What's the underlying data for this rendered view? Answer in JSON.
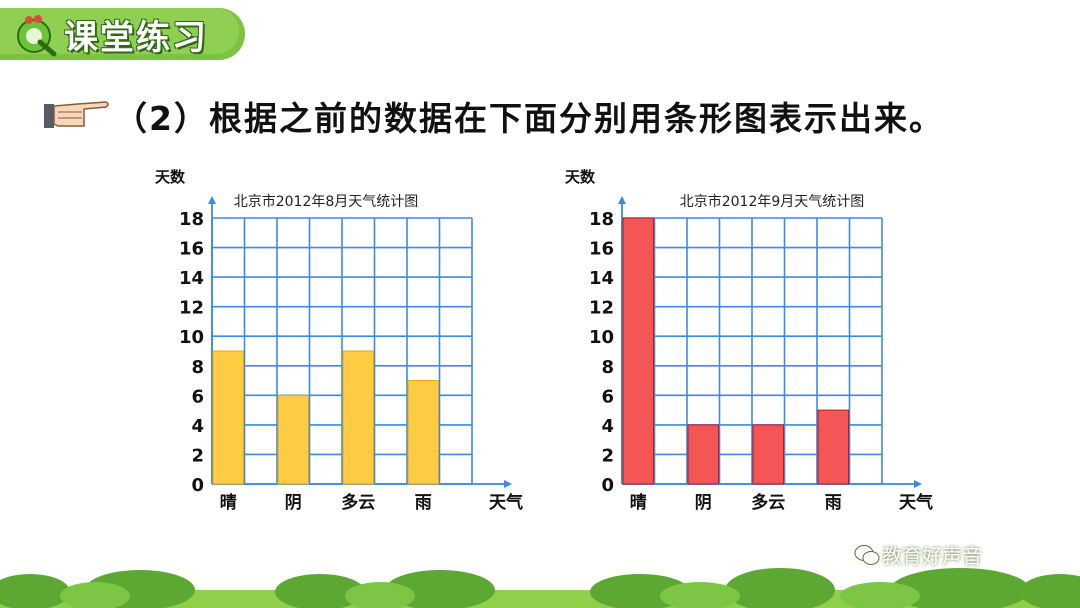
{
  "header": {
    "title": "课堂练习"
  },
  "instruction": {
    "text": "（2）根据之前的数据在下面分别用条形图表示出来。"
  },
  "charts": [
    {
      "ylabel": "天数",
      "xlabel": "天气",
      "title": "北京市2012年8月天气统计图",
      "color": "#ffcc44",
      "border": "#e8a800"
    },
    {
      "ylabel": "天数",
      "xlabel": "天气",
      "title": "北京市2012年9月天气统计图",
      "color": "#f45555",
      "border": "#c01818"
    }
  ],
  "chart_data": [
    {
      "type": "bar",
      "title": "北京市2012年8月天气统计图",
      "categories": [
        "晴",
        "阴",
        "多云",
        "雨"
      ],
      "values": [
        9,
        6,
        9,
        7
      ],
      "xlabel": "天气",
      "ylabel": "天数",
      "ylim": [
        0,
        18
      ],
      "yticks": [
        "0",
        "2",
        "4",
        "6",
        "8",
        "10",
        "12",
        "14",
        "16",
        "18"
      ],
      "grid": true
    },
    {
      "type": "bar",
      "title": "北京市2012年9月天气统计图",
      "categories": [
        "晴",
        "阴",
        "多云",
        "雨"
      ],
      "values": [
        18,
        4,
        4,
        5
      ],
      "xlabel": "天气",
      "ylabel": "天数",
      "ylim": [
        0,
        18
      ],
      "yticks": [
        "0",
        "2",
        "4",
        "6",
        "8",
        "10",
        "12",
        "14",
        "16",
        "18"
      ],
      "grid": true
    }
  ],
  "watermark": {
    "text": "教育好声音",
    "icon": "wechat-icon"
  }
}
